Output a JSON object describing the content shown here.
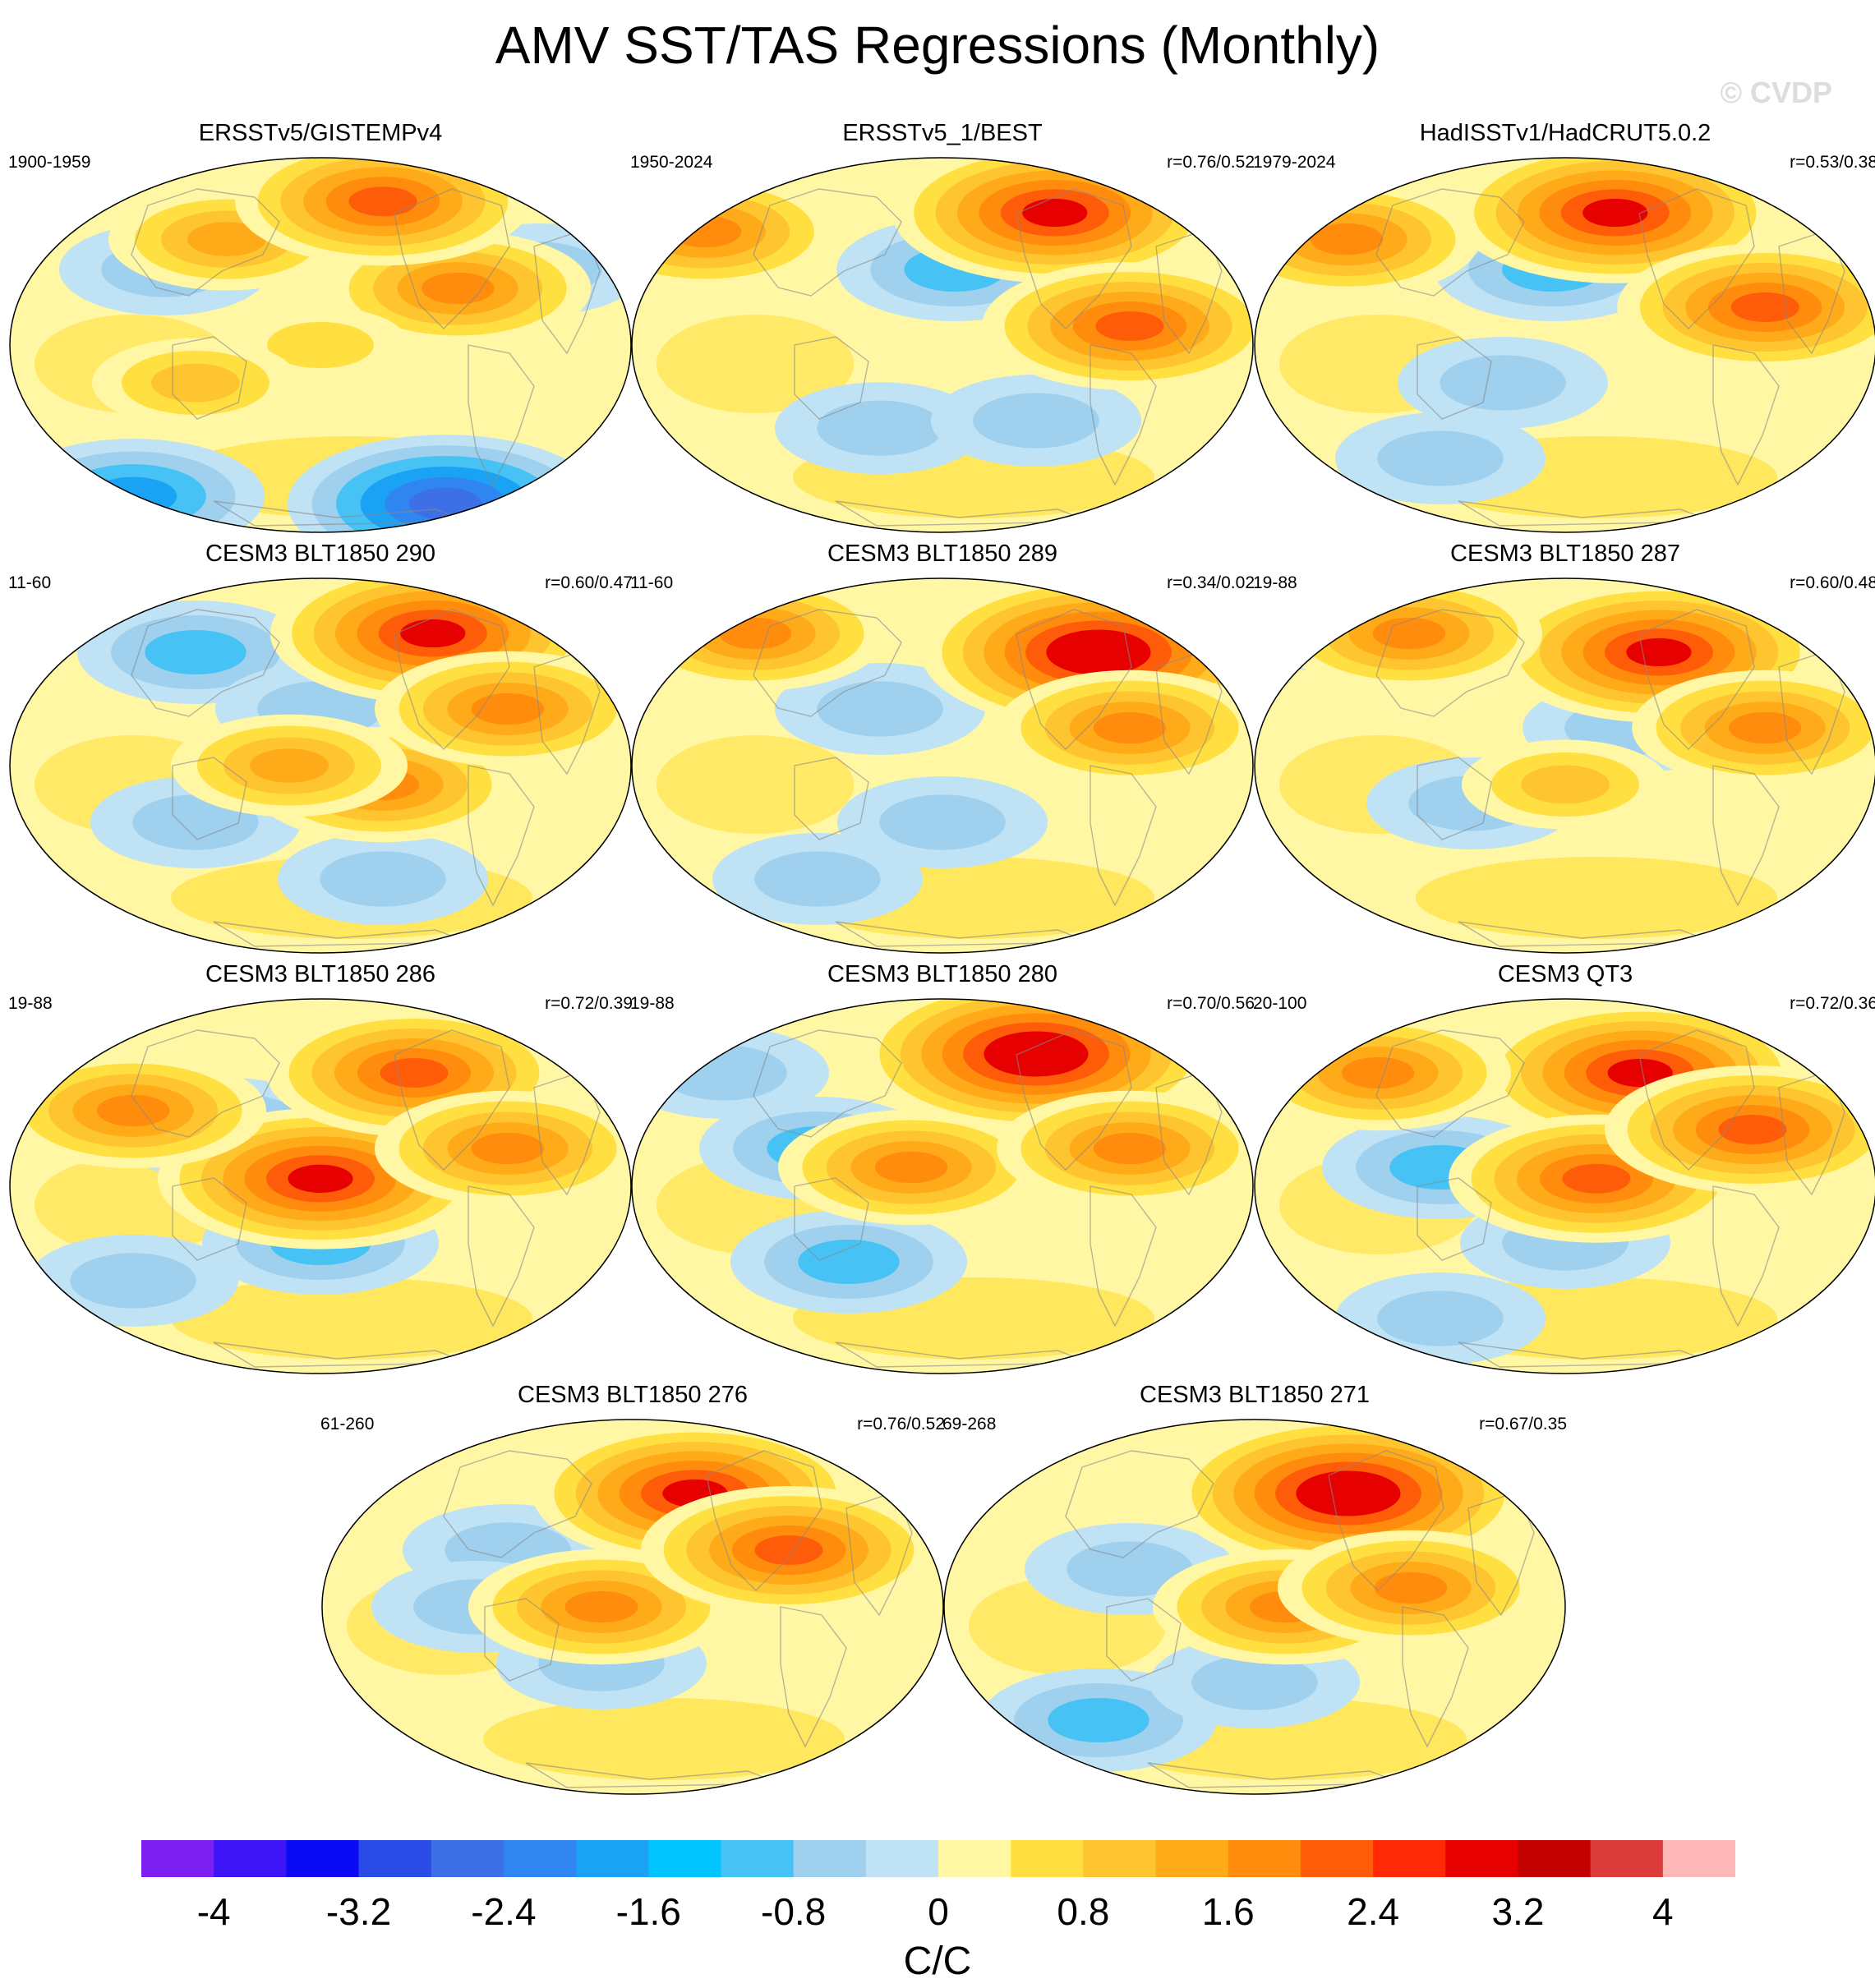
{
  "title": "AMV SST/TAS Regressions (Monthly)",
  "copyright": "© CVDP",
  "panels": [
    {
      "title": "ERSSTv5/GISTEMPv4",
      "period": "1900-1959",
      "corr": "",
      "warm": [
        [
          0.35,
          0.22,
          3
        ],
        [
          0.72,
          0.35,
          4
        ],
        [
          0.5,
          0.5,
          1
        ],
        [
          0.3,
          0.6,
          2
        ],
        [
          0.6,
          0.12,
          5
        ]
      ],
      "cool": [
        [
          0.2,
          0.9,
          3
        ],
        [
          0.7,
          0.92,
          5
        ],
        [
          0.85,
          0.3,
          1
        ],
        [
          0.25,
          0.3,
          1
        ]
      ]
    },
    {
      "title": "ERSSTv5_1/BEST",
      "period": "1950-2024",
      "corr": "r=0.76/0.52",
      "warm": [
        [
          0.68,
          0.15,
          6
        ],
        [
          0.12,
          0.2,
          4
        ],
        [
          0.8,
          0.45,
          5
        ]
      ],
      "cool": [
        [
          0.52,
          0.3,
          2
        ],
        [
          0.4,
          0.72,
          1
        ],
        [
          0.65,
          0.7,
          1
        ]
      ]
    },
    {
      "title": "HadISSTv1/HadCRUT5.0.2",
      "period": "1979-2024",
      "corr": "r=0.53/0.38",
      "warm": [
        [
          0.58,
          0.15,
          6
        ],
        [
          0.15,
          0.22,
          4
        ],
        [
          0.82,
          0.4,
          5
        ]
      ],
      "cool": [
        [
          0.48,
          0.3,
          2
        ],
        [
          0.4,
          0.6,
          1
        ],
        [
          0.3,
          0.8,
          1
        ]
      ]
    },
    {
      "title": "CESM3 BLT1850 290",
      "period": "11-60",
      "corr": "r=0.60/0.47",
      "warm": [
        [
          0.68,
          0.15,
          6
        ],
        [
          0.6,
          0.55,
          4
        ],
        [
          0.8,
          0.35,
          4
        ],
        [
          0.45,
          0.5,
          3
        ]
      ],
      "cool": [
        [
          0.3,
          0.2,
          2
        ],
        [
          0.5,
          0.35,
          1
        ],
        [
          0.3,
          0.65,
          1
        ],
        [
          0.6,
          0.8,
          1
        ]
      ]
    },
    {
      "title": "CESM3 BLT1850 289",
      "period": "11-60",
      "corr": "r=0.34/0.02",
      "warm": [
        [
          0.75,
          0.2,
          7
        ],
        [
          0.2,
          0.15,
          4
        ],
        [
          0.8,
          0.4,
          4
        ]
      ],
      "cool": [
        [
          0.4,
          0.35,
          1
        ],
        [
          0.5,
          0.65,
          1
        ],
        [
          0.3,
          0.8,
          1
        ]
      ]
    },
    {
      "title": "CESM3 BLT1850 287",
      "period": "19-88",
      "corr": "r=0.60/0.48",
      "warm": [
        [
          0.65,
          0.2,
          6
        ],
        [
          0.25,
          0.15,
          4
        ],
        [
          0.82,
          0.4,
          4
        ],
        [
          0.5,
          0.55,
          2
        ]
      ],
      "cool": [
        [
          0.15,
          0.12,
          2
        ],
        [
          0.35,
          0.6,
          1
        ],
        [
          0.6,
          0.4,
          1
        ]
      ]
    },
    {
      "title": "CESM3 BLT1850 286",
      "period": "19-88",
      "corr": "r=0.72/0.39",
      "warm": [
        [
          0.5,
          0.48,
          6
        ],
        [
          0.65,
          0.2,
          5
        ],
        [
          0.2,
          0.3,
          4
        ],
        [
          0.8,
          0.4,
          4
        ]
      ],
      "cool": [
        [
          0.35,
          0.35,
          2
        ],
        [
          0.5,
          0.65,
          2
        ],
        [
          0.2,
          0.75,
          1
        ]
      ]
    },
    {
      "title": "CESM3 BLT1850 280",
      "period": "19-88",
      "corr": "r=0.70/0.56",
      "warm": [
        [
          0.65,
          0.15,
          7
        ],
        [
          0.45,
          0.45,
          4
        ],
        [
          0.8,
          0.4,
          4
        ]
      ],
      "cool": [
        [
          0.3,
          0.4,
          2
        ],
        [
          0.35,
          0.7,
          2
        ],
        [
          0.15,
          0.2,
          1
        ]
      ]
    },
    {
      "title": "CESM3 QT3",
      "period": "20-100",
      "corr": "r=0.72/0.36",
      "warm": [
        [
          0.62,
          0.2,
          6
        ],
        [
          0.55,
          0.48,
          5
        ],
        [
          0.8,
          0.35,
          5
        ],
        [
          0.2,
          0.2,
          4
        ]
      ],
      "cool": [
        [
          0.3,
          0.45,
          2
        ],
        [
          0.5,
          0.65,
          1
        ],
        [
          0.3,
          0.85,
          1
        ]
      ]
    },
    {
      "title": "CESM3 BLT1850 276",
      "period": "61-260",
      "corr": "r=0.76/0.52",
      "warm": [
        [
          0.6,
          0.2,
          6
        ],
        [
          0.45,
          0.5,
          4
        ],
        [
          0.75,
          0.35,
          5
        ]
      ],
      "cool": [
        [
          0.3,
          0.35,
          1
        ],
        [
          0.45,
          0.65,
          1
        ],
        [
          0.25,
          0.5,
          1
        ]
      ]
    },
    {
      "title": "CESM3 BLT1850 271",
      "period": "69-268",
      "corr": "r=0.67/0.35",
      "warm": [
        [
          0.65,
          0.2,
          7
        ],
        [
          0.55,
          0.5,
          4
        ],
        [
          0.75,
          0.45,
          4
        ]
      ],
      "cool": [
        [
          0.3,
          0.4,
          1
        ],
        [
          0.25,
          0.8,
          2
        ],
        [
          0.5,
          0.7,
          1
        ]
      ]
    }
  ],
  "colorbar": {
    "colors": [
      "#7c1ff0",
      "#3d14f5",
      "#0a0af5",
      "#2b4be6",
      "#3d6fe6",
      "#2f86f0",
      "#1aa3f5",
      "#00c4ff",
      "#47c2f5",
      "#9fd0ee",
      "#bfe3f5",
      "#fff7a3",
      "#ffe040",
      "#ffc531",
      "#ffaa18",
      "#ff8c0d",
      "#ff5c0a",
      "#ff2a05",
      "#e60000",
      "#c20000",
      "#dd3c3c",
      "#ffb8b8"
    ],
    "ticks": [
      "-4",
      "-3.2",
      "-2.4",
      "-1.6",
      "-0.8",
      "0",
      "0.8",
      "1.6",
      "2.4",
      "3.2",
      "4"
    ],
    "label": "C/C"
  }
}
